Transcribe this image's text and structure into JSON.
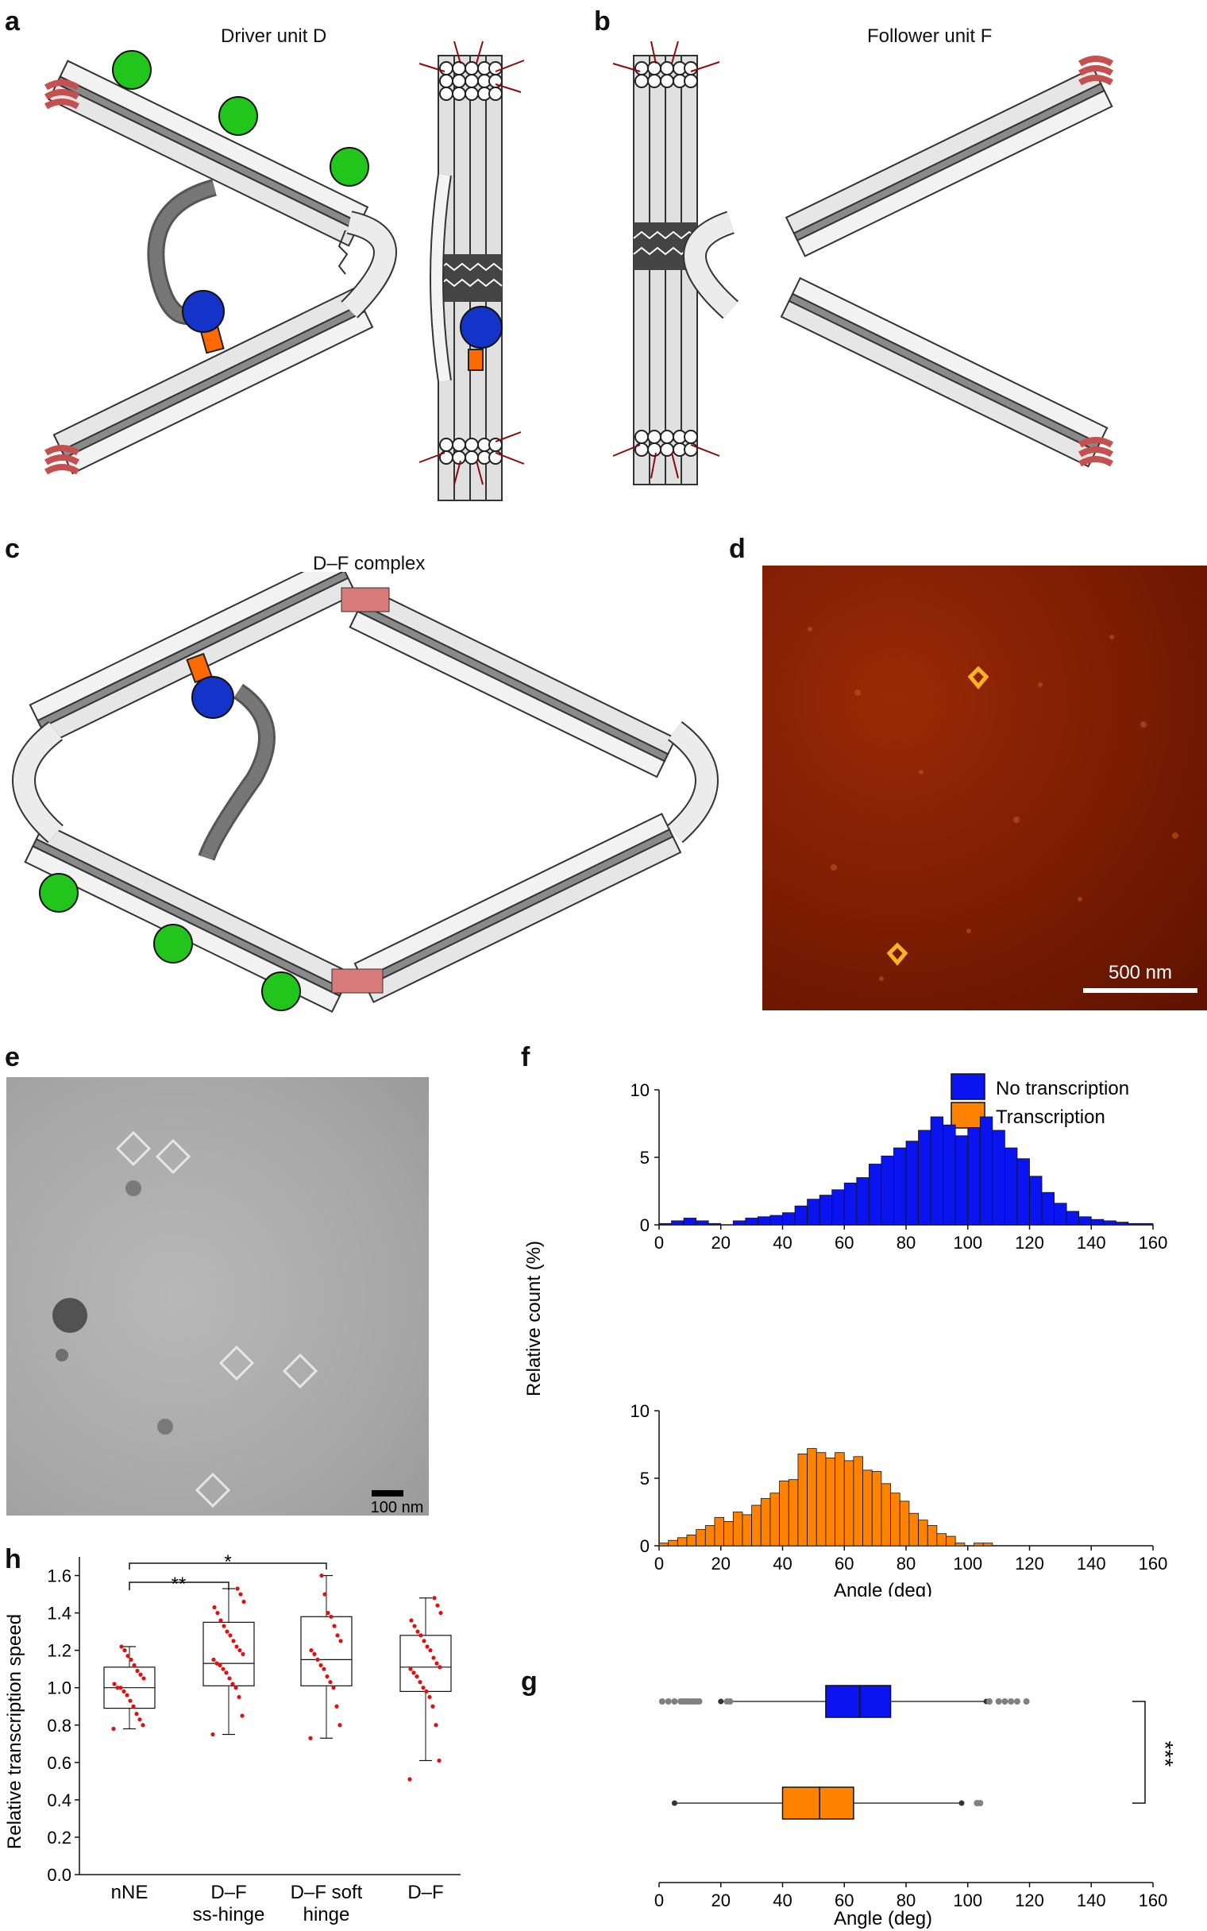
{
  "panels": {
    "a": {
      "letter": "a",
      "title": "Driver unit D"
    },
    "b": {
      "letter": "b",
      "title": "Follower unit F"
    },
    "c": {
      "letter": "c",
      "title": "D–F complex"
    },
    "d": {
      "letter": "d",
      "scalebar": "500 nm"
    },
    "e": {
      "letter": "e",
      "scalebar": "100 nm"
    },
    "f": {
      "letter": "f"
    },
    "g": {
      "letter": "g",
      "significance": "***"
    },
    "h": {
      "letter": "h",
      "sig_1": "**",
      "sig_2": "*"
    }
  },
  "colors": {
    "no_transcription": "#0a14f0",
    "transcription": "#ff8200",
    "points": "#e01010",
    "outliers": "#808080",
    "afm_bg": "#7a1a00"
  },
  "chart_data": [
    {
      "type": "bar",
      "panel": "f (top)",
      "series_name": "No transcription",
      "x_edges_start": 0,
      "bin_width": 4,
      "xlim": [
        0,
        160
      ],
      "ylim": [
        0,
        10
      ],
      "xticks": [
        0,
        20,
        40,
        60,
        80,
        100,
        120,
        140,
        160
      ],
      "yticks": [
        0,
        5,
        10
      ],
      "values": [
        0.1,
        0.3,
        0.5,
        0.3,
        0.1,
        0,
        0.3,
        0.5,
        0.6,
        0.7,
        0.9,
        1.4,
        1.9,
        2.2,
        2.6,
        3.1,
        3.5,
        4.5,
        5.1,
        5.7,
        6.2,
        7.0,
        8.0,
        7.4,
        6.6,
        7.2,
        8.0,
        7.0,
        5.7,
        4.9,
        3.6,
        2.4,
        1.6,
        1.0,
        0.6,
        0.4,
        0.3,
        0.2,
        0.1,
        0.1
      ]
    },
    {
      "type": "bar",
      "panel": "f (bottom)",
      "series_name": "Transcription",
      "x_edges_start": 0,
      "bin_width": 3,
      "xlim": [
        0,
        160
      ],
      "ylim": [
        0,
        10
      ],
      "xticks": [
        0,
        20,
        40,
        60,
        80,
        100,
        120,
        140,
        160
      ],
      "yticks": [
        0,
        5,
        10
      ],
      "values": [
        0.2,
        0.4,
        0.6,
        0.8,
        1.2,
        1.5,
        2.1,
        1.8,
        2.5,
        2.3,
        3.0,
        3.5,
        3.9,
        4.8,
        4.9,
        6.8,
        7.2,
        6.9,
        6.5,
        6.9,
        6.3,
        6.6,
        5.6,
        5.5,
        4.6,
        3.9,
        3.3,
        2.4,
        1.9,
        1.5,
        0.9,
        0.7,
        0.2,
        0,
        0.2,
        0.2
      ],
      "xlabel": "Angle (deg)",
      "ylabel": "Relative count (%)"
    },
    {
      "type": "boxplot",
      "panel": "g",
      "xlabel": "Angle (deg)",
      "xlim": [
        0,
        160
      ],
      "xticks": [
        0,
        20,
        40,
        60,
        80,
        100,
        120,
        140,
        160
      ],
      "series": [
        {
          "name": "No transcription",
          "whisker_low": 20,
          "q1": 54,
          "median": 65,
          "q3": 75,
          "whisker_high": 106,
          "outliers": [
            1,
            3,
            5,
            7,
            8,
            9,
            10,
            11,
            12,
            13,
            22,
            23,
            107,
            110,
            112,
            114,
            116,
            119
          ]
        },
        {
          "name": "Transcription",
          "whisker_low": 5,
          "q1": 40,
          "median": 52,
          "q3": 63,
          "whisker_high": 98,
          "outliers": [
            103,
            104
          ]
        }
      ]
    },
    {
      "type": "boxplot",
      "panel": "h",
      "ylabel": "Relative transcription speed",
      "ylim": [
        0,
        1.7
      ],
      "yticks": [
        0,
        0.2,
        0.4,
        0.6,
        0.8,
        1.0,
        1.2,
        1.4,
        1.6
      ],
      "categories": [
        "nNE",
        "D–F\nss-hinge",
        "D–F soft\nhinge",
        "D–F"
      ],
      "series": [
        {
          "name": "nNE",
          "whisker_low": 0.78,
          "q1": 0.89,
          "median": 1.0,
          "q3": 1.11,
          "whisker_high": 1.22,
          "points": [
            0.78,
            0.8,
            0.83,
            0.86,
            0.9,
            0.93,
            0.96,
            0.98,
            1.0,
            1.0,
            1.02,
            1.05,
            1.07,
            1.09,
            1.12,
            1.15,
            1.17,
            1.2,
            1.22
          ]
        },
        {
          "name": "D–F ss-hinge",
          "whisker_low": 0.75,
          "q1": 1.01,
          "median": 1.13,
          "q3": 1.35,
          "whisker_high": 1.53,
          "points": [
            0.75,
            0.85,
            0.95,
            1.0,
            1.02,
            1.05,
            1.08,
            1.1,
            1.12,
            1.13,
            1.15,
            1.18,
            1.2,
            1.22,
            1.25,
            1.28,
            1.3,
            1.33,
            1.36,
            1.4,
            1.43,
            1.46,
            1.5,
            1.53
          ]
        },
        {
          "name": "D–F soft hinge",
          "whisker_low": 0.73,
          "q1": 1.01,
          "median": 1.15,
          "q3": 1.38,
          "whisker_high": 1.6,
          "points": [
            0.73,
            0.8,
            0.9,
            1.0,
            1.03,
            1.06,
            1.1,
            1.12,
            1.15,
            1.18,
            1.2,
            1.25,
            1.28,
            1.33,
            1.38,
            1.4,
            1.5,
            1.6
          ]
        },
        {
          "name": "D–F",
          "whisker_low": 0.61,
          "q1": 0.98,
          "median": 1.11,
          "q3": 1.28,
          "whisker_high": 1.48,
          "points": [
            0.51,
            0.61,
            0.8,
            0.9,
            0.95,
            0.98,
            1.0,
            1.03,
            1.06,
            1.08,
            1.1,
            1.11,
            1.13,
            1.16,
            1.2,
            1.22,
            1.25,
            1.28,
            1.3,
            1.33,
            1.36,
            1.4,
            1.44,
            1.48
          ]
        }
      ],
      "significance": [
        {
          "between": [
            "nNE",
            "D–F ss-hinge"
          ],
          "label": "**"
        },
        {
          "between": [
            "nNE",
            "D–F soft hinge"
          ],
          "label": "*"
        }
      ]
    }
  ]
}
